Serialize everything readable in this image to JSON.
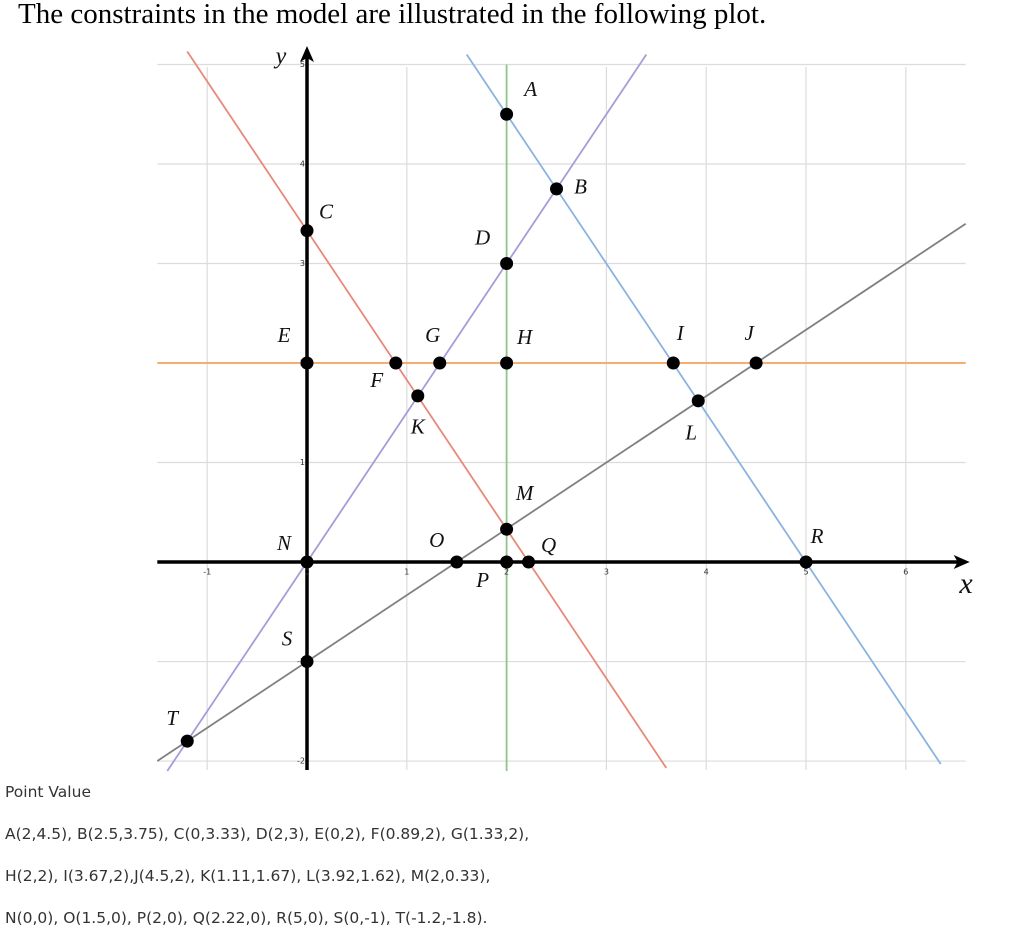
{
  "heading": "The constraints in the model are illustrated in the following plot.",
  "chart_data": {
    "type": "line",
    "x_label": "x",
    "y_label": "y",
    "xlim": [
      -1.5,
      6.6
    ],
    "ylim": [
      -2.1,
      5.05
    ],
    "xticks": [
      -1,
      0,
      1,
      2,
      3,
      4,
      5,
      6
    ],
    "yticks": [
      -2,
      -1,
      0,
      1,
      2,
      3,
      4,
      5
    ],
    "grid": true,
    "series": [
      {
        "color": "#e8897a",
        "x": [
          -1.2,
          3.6
        ],
        "values": [
          5.13,
          -2.07
        ]
      },
      {
        "color": "#8ab4df",
        "x": [
          1.6,
          6.35
        ],
        "values": [
          5.1,
          -2.03
        ]
      },
      {
        "color": "#a99bd8",
        "x": [
          -1.4,
          3.4
        ],
        "values": [
          -2.1,
          5.1
        ]
      },
      {
        "color": "#808080",
        "x": [
          -1.5,
          6.6
        ],
        "values": [
          -2,
          3.4
        ]
      },
      {
        "color": "#f5a35c",
        "x": [
          -1.5,
          6.6
        ],
        "values": [
          2,
          2
        ]
      },
      {
        "color": "#8fc48a",
        "x": [
          2,
          2
        ],
        "values": [
          -2.1,
          5
        ]
      }
    ],
    "point_color": "#000000",
    "points": [
      {
        "label": "A",
        "x": 2,
        "y": 4.5
      },
      {
        "label": "B",
        "x": 2.5,
        "y": 3.75
      },
      {
        "label": "C",
        "x": 0,
        "y": 3.33
      },
      {
        "label": "D",
        "x": 2,
        "y": 3
      },
      {
        "label": "E",
        "x": 0,
        "y": 2
      },
      {
        "label": "F",
        "x": 0.89,
        "y": 2
      },
      {
        "label": "G",
        "x": 1.33,
        "y": 2
      },
      {
        "label": "H",
        "x": 2,
        "y": 2
      },
      {
        "label": "I",
        "x": 3.67,
        "y": 2
      },
      {
        "label": "J",
        "x": 4.5,
        "y": 2
      },
      {
        "label": "K",
        "x": 1.11,
        "y": 1.67
      },
      {
        "label": "L",
        "x": 3.92,
        "y": 1.62
      },
      {
        "label": "M",
        "x": 2,
        "y": 0.33
      },
      {
        "label": "N",
        "x": 0,
        "y": 0
      },
      {
        "label": "O",
        "x": 1.5,
        "y": 0
      },
      {
        "label": "P",
        "x": 2,
        "y": 0
      },
      {
        "label": "Q",
        "x": 2.22,
        "y": 0
      },
      {
        "label": "R",
        "x": 5,
        "y": 0
      },
      {
        "label": "S",
        "x": 0,
        "y": -1
      },
      {
        "label": "T",
        "x": -1.2,
        "y": -1.8
      }
    ]
  },
  "caption": {
    "title": "Point Value",
    "lines": [
      "A(2,4.5), B(2.5,3.75), C(0,3.33), D(2,3), E(0,2), F(0.89,2), G(1.33,2),",
      "H(2,2), I(3.67,2),J(4.5,2), K(1.11,1.67), L(3.92,1.62), M(2,0.33),",
      "N(0,0), O(1.5,0), P(2,0), Q(2.22,0), R(5,0), S(0,-1), T(-1.2,-1.8)."
    ]
  }
}
